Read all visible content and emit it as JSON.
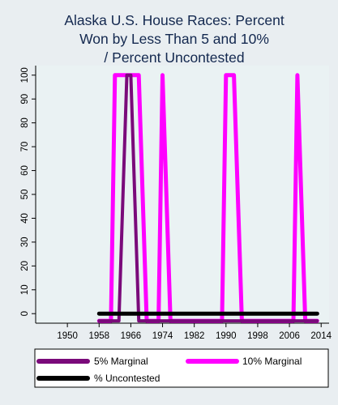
{
  "chart_data": {
    "type": "line",
    "title_lines": [
      "Alaska U.S. House Races: Percent",
      "Won by Less Than 5 and 10%",
      "/ Percent Uncontested"
    ],
    "xlabel": "",
    "ylabel": "",
    "x_ticks": [
      1950,
      1958,
      1966,
      1974,
      1982,
      1990,
      1998,
      2006,
      2014
    ],
    "y_ticks": [
      0,
      10,
      20,
      30,
      40,
      50,
      60,
      70,
      80,
      90,
      100
    ],
    "xlim": [
      1942,
      2016
    ],
    "ylim": [
      -4,
      104
    ],
    "grid": false,
    "legend_position": "bottom",
    "series": [
      {
        "name": "10% Marginal",
        "color": "#ff00ff",
        "width": 5,
        "x": [
          1958,
          1961,
          1962,
          1968,
          1970,
          1973,
          1974,
          1976,
          1989,
          1990,
          1992,
          1994,
          2007,
          2008,
          2010,
          2013
        ],
        "y": [
          -3,
          -3,
          100,
          100,
          -3,
          -3,
          100,
          -3,
          -3,
          100,
          100,
          -3,
          -3,
          100,
          -3,
          -3
        ]
      },
      {
        "name": "5% Marginal",
        "color": "#7a0a7a",
        "width": 4,
        "x": [
          1958,
          1963,
          1965,
          1966,
          1968,
          2013
        ],
        "y": [
          -3,
          -3,
          100,
          100,
          -3,
          -3
        ]
      },
      {
        "name": "% Uncontested",
        "color": "#000000",
        "width": 5,
        "x": [
          1958,
          2013
        ],
        "y": [
          0,
          0
        ]
      }
    ],
    "legend": [
      {
        "label": "5% Marginal",
        "color": "#7a0a7a"
      },
      {
        "label": "10% Marginal",
        "color": "#ff00ff"
      },
      {
        "label": "% Uncontested",
        "color": "#000000"
      }
    ]
  }
}
